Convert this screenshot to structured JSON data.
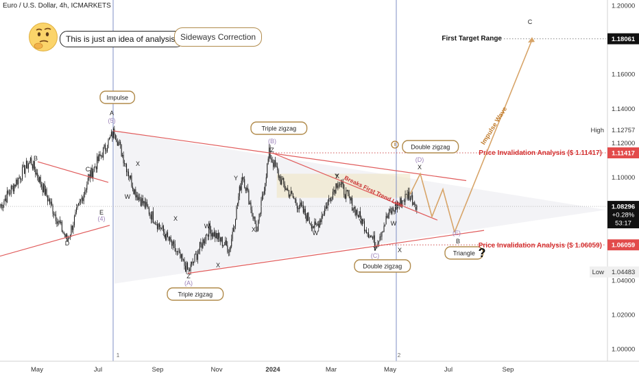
{
  "header": {
    "symbol_title": "Euro / U.S. Dollar, 4h, ICMARKETS",
    "disclaimer": "This is just an idea of analysis.",
    "pattern_title": "Sideways Correction"
  },
  "colors": {
    "candle": "#111111",
    "trendline": "#e05a5a",
    "box_border": "#b08a4a",
    "impulse_arrow": "#d7a468",
    "wave_label_purple": "#9a80b8",
    "current_price_bg": "#111111",
    "invalidation_bg": "#e24b4b",
    "target_bg": "#111111"
  },
  "chart_data": {
    "type": "candlestick",
    "title": "Euro / U.S. Dollar, 4h, ICMARKETS",
    "xlabel": "",
    "ylabel": "",
    "ylim": [
      0.992,
      1.2035
    ],
    "x_ticks": [
      "May",
      "Jul",
      "Sep",
      "Nov",
      "2024",
      "Mar",
      "May",
      "Jul",
      "Sep"
    ],
    "y_ticks": [
      "1.20000",
      "1.18000",
      "1.16000",
      "1.14000",
      "1.12000",
      "1.10000",
      "1.08000",
      "1.06000",
      "1.04000",
      "1.02000",
      "1.00000"
    ],
    "price_path": [
      {
        "date": "2023-04-03",
        "price": 1.083
      },
      {
        "date": "2023-04-26",
        "price": 1.11
      },
      {
        "date": "2023-05-31",
        "price": 1.063
      },
      {
        "date": "2023-06-22",
        "price": 1.1
      },
      {
        "date": "2023-07-18",
        "price": 1.127
      },
      {
        "date": "2023-08-08",
        "price": 1.092
      },
      {
        "date": "2023-09-07",
        "price": 1.068
      },
      {
        "date": "2023-10-03",
        "price": 1.045
      },
      {
        "date": "2023-10-24",
        "price": 1.07
      },
      {
        "date": "2023-11-15",
        "price": 1.058
      },
      {
        "date": "2023-11-29",
        "price": 1.102
      },
      {
        "date": "2023-12-15",
        "price": 1.068
      },
      {
        "date": "2023-12-28",
        "price": 1.114
      },
      {
        "date": "2024-01-10",
        "price": 1.097
      },
      {
        "date": "2024-02-14",
        "price": 1.07
      },
      {
        "date": "2024-03-08",
        "price": 1.098
      },
      {
        "date": "2024-04-16",
        "price": 1.061
      },
      {
        "date": "2024-04-29",
        "price": 1.078
      },
      {
        "date": "2024-05-20",
        "price": 1.09
      },
      {
        "date": "2024-05-30",
        "price": 1.083
      }
    ],
    "current_price": {
      "price": "1.08296",
      "change": "+0.28%",
      "countdown": "53:17"
    },
    "high": {
      "label": "High",
      "value": "1.12757"
    },
    "low": {
      "label": "Low",
      "value": "1.04483"
    },
    "first_target": {
      "label": "First Target Range",
      "value": "1.18061"
    },
    "invalidation_upper": {
      "label": "Price Invalidation Analysis ($ 1.11417)",
      "value": "1.11417"
    },
    "invalidation_lower": {
      "label": "Price Invalidation Analysis ($ 1.06059)",
      "value": "1.06059"
    },
    "trendline_label": "Breaks First Trend Line",
    "impulse_label": "Impulse Wave",
    "box_labels": [
      "Impulse",
      "Triple zigzag",
      "Triple zigzag",
      "Double zigzag",
      "Double zigzag",
      "Triangle"
    ],
    "wave_labels_black": [
      "A",
      "B",
      "C",
      "D",
      "E",
      "W",
      "X",
      "Y",
      "X",
      "Z",
      "W",
      "X",
      "Y",
      "X",
      "Z",
      "W",
      "X",
      "Y",
      "W",
      "X",
      "Y",
      "X",
      "Y",
      "B",
      "C"
    ],
    "wave_labels_purple": [
      "(5)",
      "(4)",
      "(B)",
      "(A)",
      "(C)",
      "(D)",
      "(E)"
    ],
    "marker_labels": [
      "?",
      "1",
      "2"
    ]
  }
}
